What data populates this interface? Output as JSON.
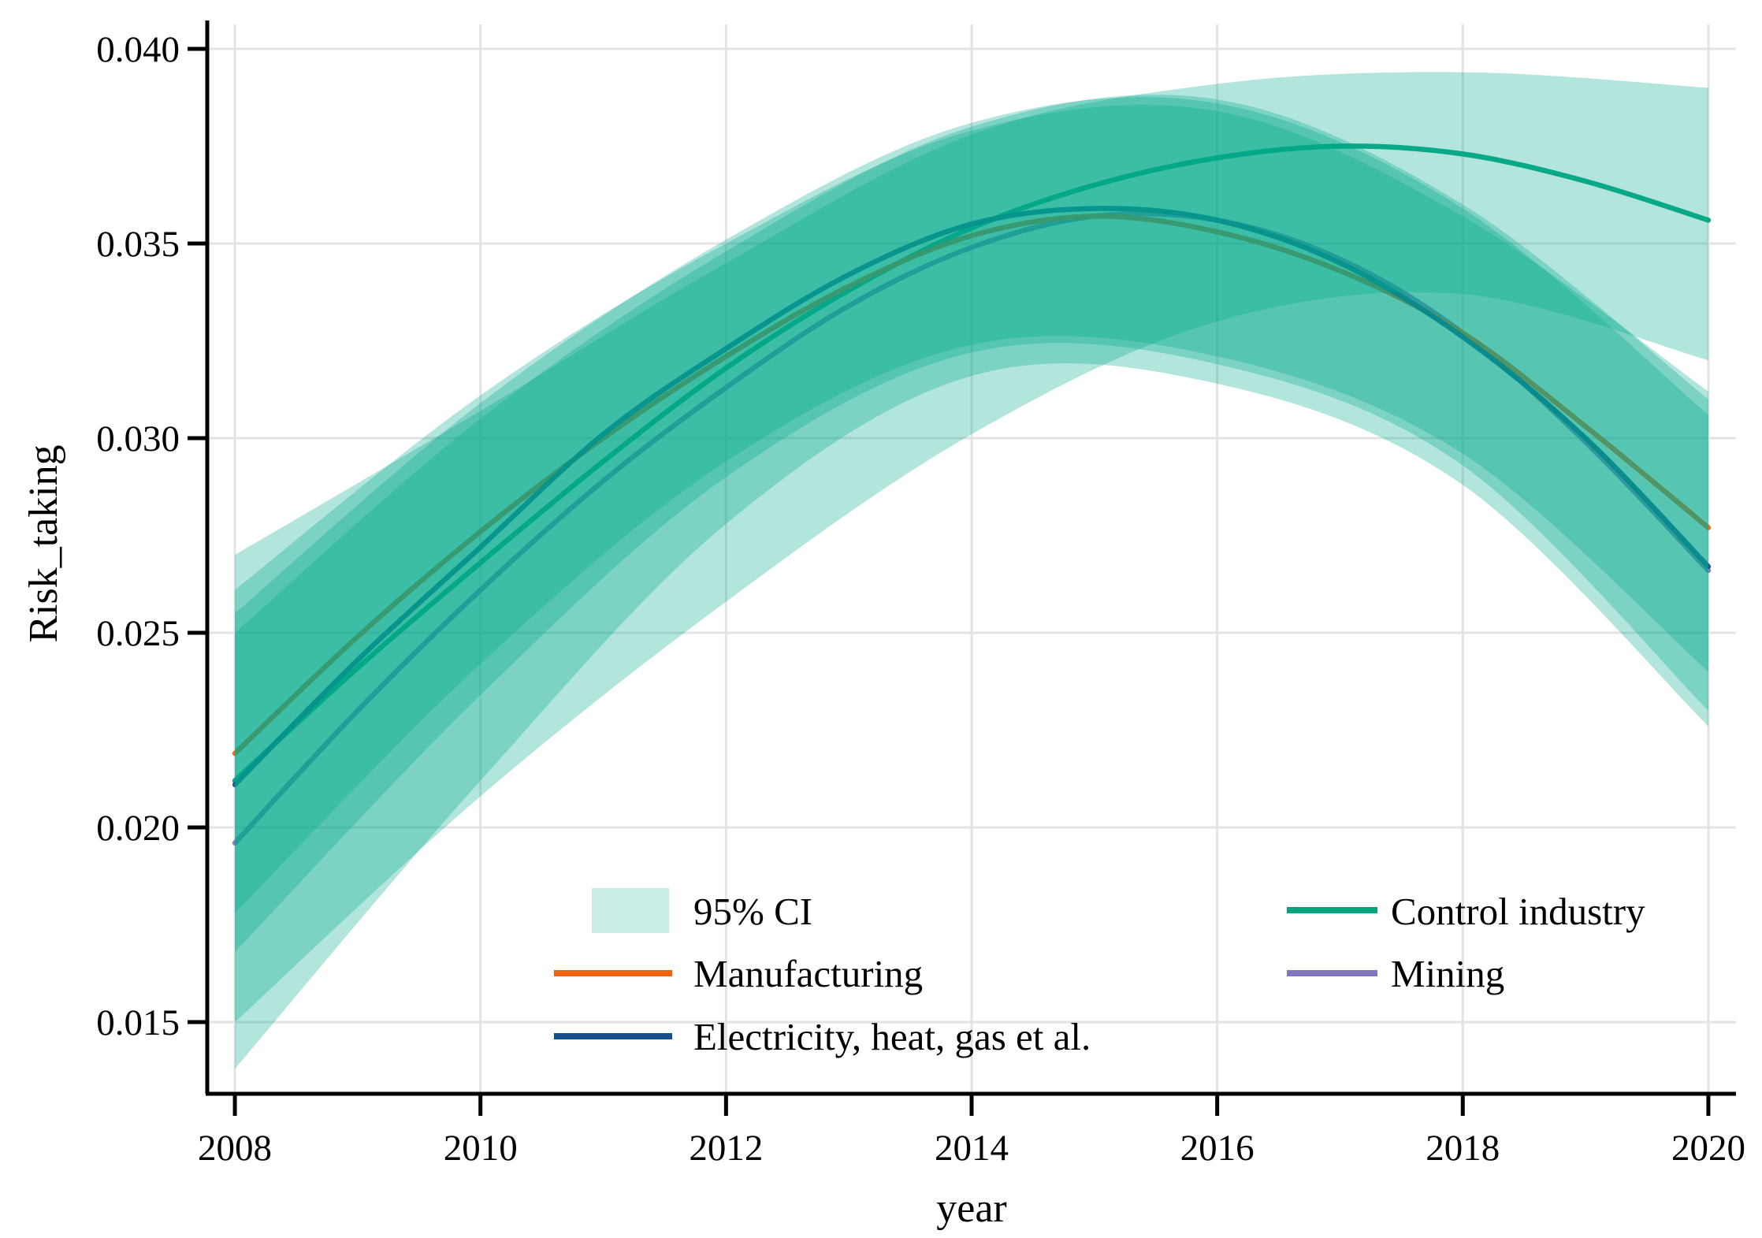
{
  "chart_data": {
    "type": "line",
    "title": "",
    "xlabel": "year",
    "ylabel": "Risk_taking",
    "x_ticks": [
      2008,
      2010,
      2012,
      2014,
      2016,
      2018,
      2020
    ],
    "x_tick_labels": [
      "2008",
      "2010",
      "2012",
      "2014",
      "2016",
      "2018",
      "2020"
    ],
    "y_ticks": [
      0.015,
      0.02,
      0.025,
      0.03,
      0.035,
      0.04
    ],
    "y_tick_labels": [
      "0.015",
      "0.020",
      "0.025",
      "0.030",
      "0.035",
      "0.040"
    ],
    "xlim": [
      2007.775,
      2020.225
    ],
    "ylim": [
      0.013158,
      0.040729
    ],
    "grid": true,
    "legend_position": "bottom-inside-two-columns",
    "ci_color": "#00AA8C",
    "ci_alpha": 0.3,
    "ci_legend_fill": "#C9ECE4",
    "ci_label": "95% CI",
    "series": [
      {
        "name": "Manufacturing",
        "color": "#ED6511",
        "values": [
          [
            2008,
            0.0219
          ],
          [
            2009,
            0.0249
          ],
          [
            2010,
            0.0276
          ],
          [
            2011,
            0.03
          ],
          [
            2012,
            0.0321
          ],
          [
            2013,
            0.0339
          ],
          [
            2014,
            0.0352
          ],
          [
            2015,
            0.0357
          ],
          [
            2016,
            0.0353
          ],
          [
            2017,
            0.0343
          ],
          [
            2018,
            0.0327
          ],
          [
            2019,
            0.0303
          ],
          [
            2020,
            0.0277
          ]
        ]
      },
      {
        "name": "Electricity, heat, gas et al.",
        "color": "#17508F",
        "values": [
          [
            2008,
            0.0211
          ],
          [
            2009,
            0.0243
          ],
          [
            2010,
            0.0272
          ],
          [
            2011,
            0.0301
          ],
          [
            2012,
            0.0323
          ],
          [
            2013,
            0.0342
          ],
          [
            2014,
            0.0355
          ],
          [
            2015,
            0.0359
          ],
          [
            2016,
            0.0356
          ],
          [
            2017,
            0.0345
          ],
          [
            2018,
            0.0326
          ],
          [
            2019,
            0.03
          ],
          [
            2020,
            0.0267
          ]
        ]
      },
      {
        "name": "Mining",
        "color": "#8277BE",
        "values": [
          [
            2008,
            0.0196
          ],
          [
            2009,
            0.023
          ],
          [
            2010,
            0.0261
          ],
          [
            2011,
            0.0289
          ],
          [
            2012,
            0.0313
          ],
          [
            2013,
            0.0334
          ],
          [
            2014,
            0.0349
          ],
          [
            2015,
            0.0357
          ],
          [
            2016,
            0.0356
          ],
          [
            2017,
            0.0346
          ],
          [
            2018,
            0.0327
          ],
          [
            2019,
            0.0299
          ],
          [
            2020,
            0.0266
          ]
        ]
      },
      {
        "name": "Control industry",
        "color": "#00A37D",
        "values": [
          [
            2008,
            0.0212
          ],
          [
            2009,
            0.0241
          ],
          [
            2010,
            0.0268
          ],
          [
            2011,
            0.0294
          ],
          [
            2012,
            0.0318
          ],
          [
            2013,
            0.0338
          ],
          [
            2014,
            0.0354
          ],
          [
            2015,
            0.0365
          ],
          [
            2016,
            0.0372
          ],
          [
            2017,
            0.0375
          ],
          [
            2018,
            0.0373
          ],
          [
            2019,
            0.0366
          ],
          [
            2020,
            0.0356
          ]
        ]
      }
    ],
    "ci_bands": [
      {
        "name": "Manufacturing 95% CI",
        "points": [
          [
            2008,
            0.0178,
            0.0261
          ],
          [
            2010,
            0.0242,
            0.0311
          ],
          [
            2012,
            0.0294,
            0.035
          ],
          [
            2014,
            0.0324,
            0.0379
          ],
          [
            2016,
            0.0321,
            0.0384
          ],
          [
            2018,
            0.0296,
            0.0357
          ],
          [
            2020,
            0.024,
            0.0312
          ]
        ]
      },
      {
        "name": "Electricity 95% CI",
        "points": [
          [
            2008,
            0.0168,
            0.0255
          ],
          [
            2010,
            0.0234,
            0.0309
          ],
          [
            2012,
            0.029,
            0.0351
          ],
          [
            2014,
            0.0322,
            0.0381
          ],
          [
            2016,
            0.0319,
            0.0386
          ],
          [
            2018,
            0.0293,
            0.0359
          ],
          [
            2020,
            0.023,
            0.0306
          ]
        ]
      },
      {
        "name": "Mining 95% CI",
        "points": [
          [
            2008,
            0.0138,
            0.025
          ],
          [
            2010,
            0.0212,
            0.0305
          ],
          [
            2012,
            0.0278,
            0.0348
          ],
          [
            2014,
            0.0316,
            0.038
          ],
          [
            2016,
            0.0314,
            0.0387
          ],
          [
            2018,
            0.0288,
            0.036
          ],
          [
            2020,
            0.0226,
            0.031
          ]
        ]
      },
      {
        "name": "Control industry 95% CI",
        "points": [
          [
            2008,
            0.015,
            0.027
          ],
          [
            2010,
            0.0208,
            0.0307
          ],
          [
            2012,
            0.0258,
            0.0345
          ],
          [
            2014,
            0.0301,
            0.0378
          ],
          [
            2016,
            0.033,
            0.0391
          ],
          [
            2018,
            0.0337,
            0.0394
          ],
          [
            2020,
            0.032,
            0.039
          ]
        ]
      }
    ]
  },
  "legend": {
    "ci_label": "95% CI"
  }
}
